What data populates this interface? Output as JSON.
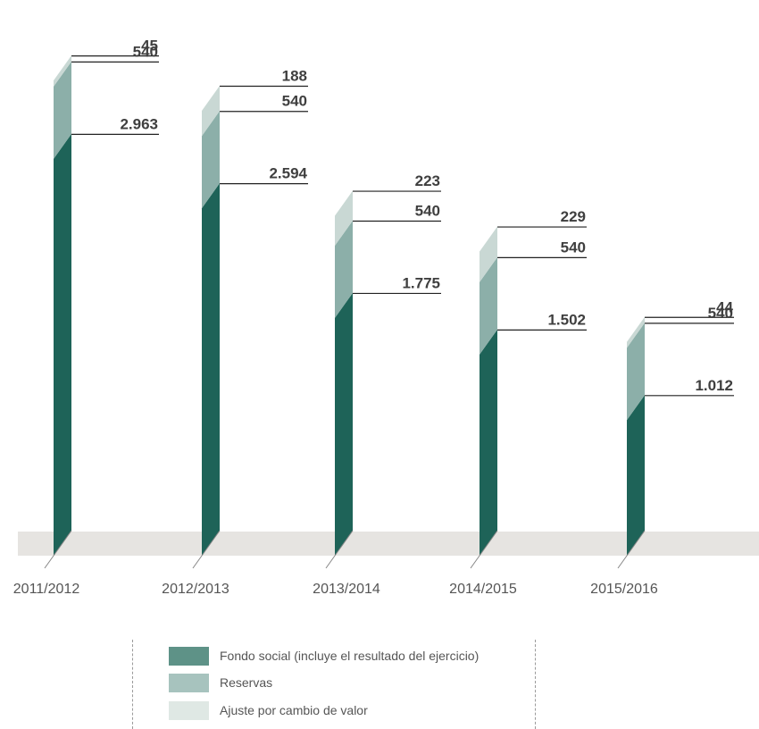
{
  "chart_data": {
    "type": "bar",
    "stacked": true,
    "categories": [
      "2011/2012",
      "2012/2013",
      "2013/2014",
      "2014/2015",
      "2015/2016"
    ],
    "series": [
      {
        "name": "Fondo social (incluye el resultado del ejercicio)",
        "values": [
          "2.963",
          "2.594",
          "1.775",
          "1.502",
          "1.012"
        ],
        "color": "#1e6358"
      },
      {
        "name": "Reservas",
        "values": [
          "540",
          "540",
          "540",
          "540",
          "540"
        ],
        "color": "#a7c3be"
      },
      {
        "name": "Ajuste por cambio de valor",
        "values": [
          "45",
          "188",
          "223",
          "229",
          "44"
        ],
        "color": "#dfe8e4"
      }
    ],
    "legend_placement": "bottom",
    "grid": false
  },
  "colors": {
    "fondo_dark": "#1e6358",
    "reservas_dark": "#8cafa9",
    "ajuste_dark": "#c9d8d4",
    "legend_fondo": "#5e9287",
    "floor": "#e6e4e1"
  }
}
